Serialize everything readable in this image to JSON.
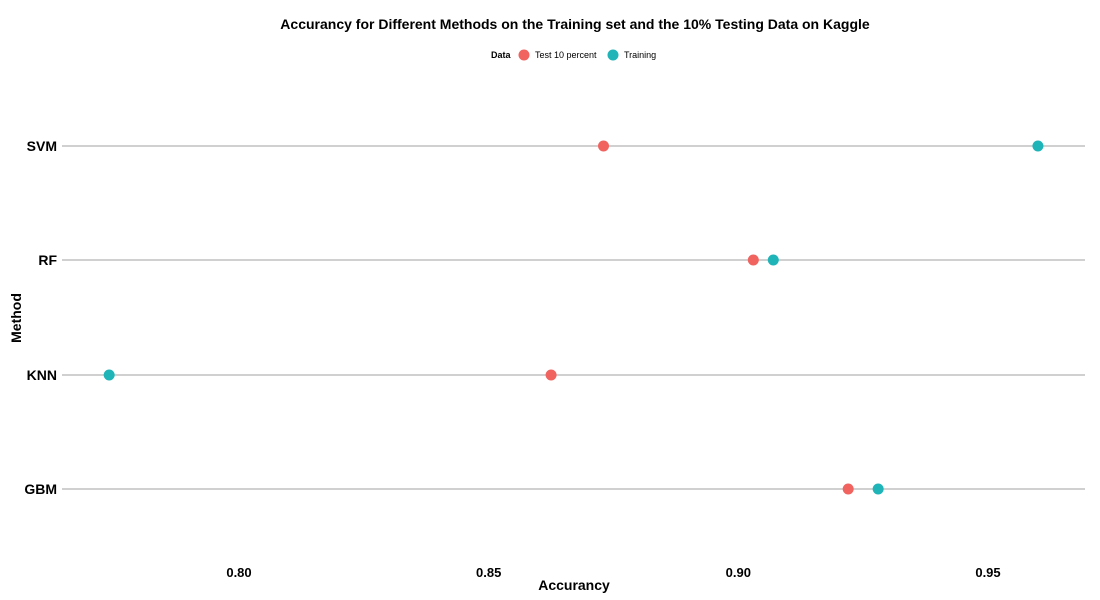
{
  "chart_data": {
    "type": "scatter",
    "title": "Accurancy for Different Methods on the Training set and the 10% Testing Data on Kaggle",
    "xlabel": "Accurancy",
    "ylabel": "Method",
    "legend": {
      "title": "Data",
      "placement": "top-center"
    },
    "categories": [
      "SVM",
      "RF",
      "KNN",
      "GBM"
    ],
    "xlim": [
      0.765,
      0.97
    ],
    "x_ticks": [
      0.8,
      0.85,
      0.9,
      0.95
    ],
    "x_tick_labels": [
      "0.80",
      "0.85",
      "0.90",
      "0.95"
    ],
    "grid": "horizontal per category",
    "series": [
      {
        "name": "Test 10 percent",
        "color": "#F0635F",
        "values": [
          0.873,
          0.903,
          0.8625,
          0.922
        ]
      },
      {
        "name": "Training",
        "color": "#1FB4B8",
        "values": [
          0.96,
          0.907,
          0.774,
          0.928
        ]
      }
    ]
  }
}
